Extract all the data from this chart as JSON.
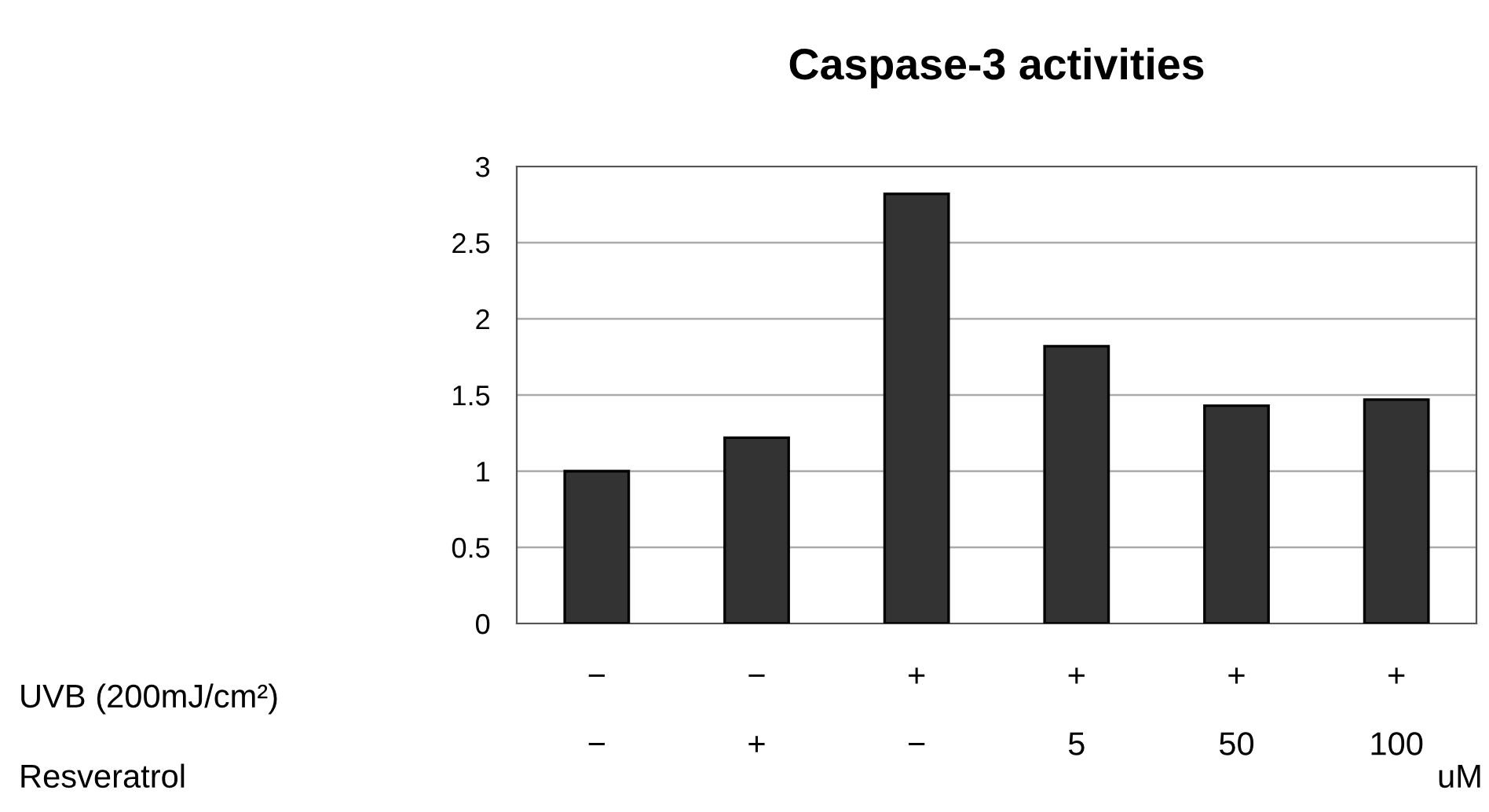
{
  "chart_data": {
    "type": "bar",
    "title": "Caspase-3 activities",
    "categories": [
      "−\n−",
      "−\n+",
      "+\n−",
      "+\n5",
      "+\n50",
      "+\n100"
    ],
    "values": [
      1.0,
      1.22,
      2.82,
      1.82,
      1.43,
      1.47
    ],
    "color": "#333333",
    "ylim": [
      0,
      3
    ],
    "yticks": [
      0,
      0.5,
      1,
      1.5,
      2,
      2.5,
      3
    ],
    "grid": "y",
    "annotations": [
      "UVB (200mJ/cm²)",
      "Resveratrol",
      "uM"
    ]
  }
}
